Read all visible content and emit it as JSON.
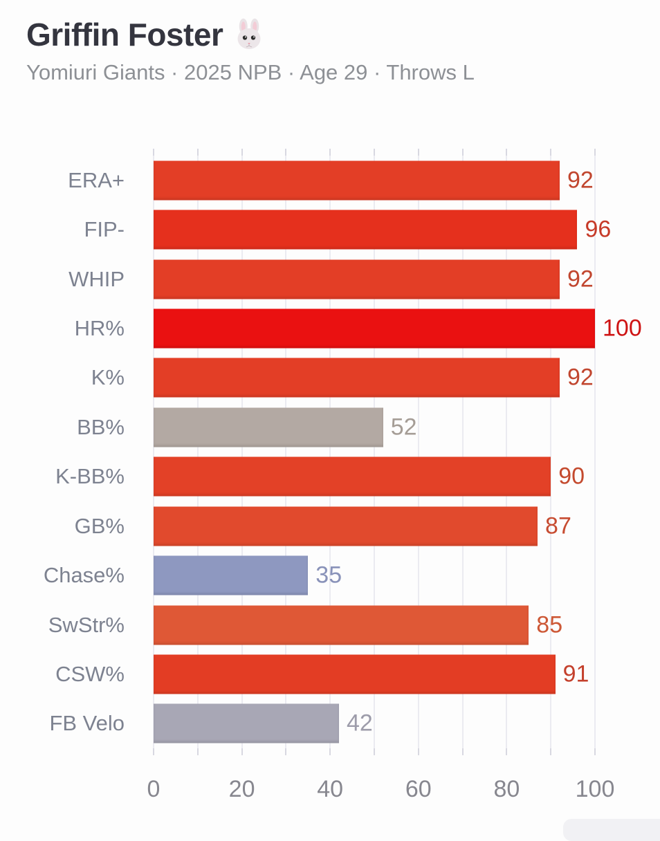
{
  "header": {
    "title": "Griffin Foster",
    "emoji": "🐰",
    "subtitle": "Yomiuri Giants · 2025 NPB · Age 29 · Throws L"
  },
  "chart_data": {
    "type": "bar",
    "orientation": "horizontal",
    "categories": [
      "ERA+",
      "FIP-",
      "WHIP",
      "HR%",
      "K%",
      "BB%",
      "K-BB%",
      "GB%",
      "Chase%",
      "SwStr%",
      "CSW%",
      "FB Velo"
    ],
    "values": [
      92,
      96,
      92,
      100,
      92,
      52,
      90,
      87,
      35,
      85,
      91,
      42
    ],
    "bar_colors": [
      "#e33e26",
      "#e5301d",
      "#e33e26",
      "#ea1111",
      "#e33e26",
      "#b3a9a3",
      "#e34127",
      "#e14a2d",
      "#8e98c0",
      "#df5836",
      "#e33d24",
      "#a8a7b5"
    ],
    "value_label_colors": [
      "#c1462f",
      "#c63a28",
      "#c1462f",
      "#ce1414",
      "#c1462f",
      "#a59d96",
      "#c44a2e",
      "#c74c31",
      "#8992b9",
      "#cd5836",
      "#c4402c",
      "#9d9caa"
    ],
    "xlim": [
      0,
      100
    ],
    "grid_step": 10,
    "x_ticks": [
      0,
      20,
      40,
      60,
      80,
      100
    ],
    "x_tick_labels": [
      "0",
      "20",
      "40",
      "60",
      "80",
      "100"
    ],
    "grid": "vertical gridlines every 10, light gray, ticks above and below plot",
    "legend": "none",
    "title": "",
    "xlabel": "",
    "ylabel": ""
  },
  "colors": {
    "background": "#fdfdfd",
    "title_text": "#34353f",
    "subtitle_text": "#8d9095",
    "category_label": "#7d8290",
    "axis_label": "#87878f",
    "gridline": "#ebebf1",
    "tick": "#d8d8e1"
  }
}
